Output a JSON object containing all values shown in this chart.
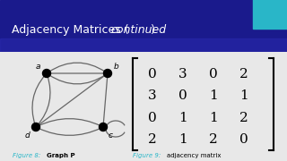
{
  "title_normal": "Adjacency Matrices (",
  "title_italic": "continued",
  "title_close": ")",
  "bg_color": "#e8e8e8",
  "header_bg_dark": "#1a1a8c",
  "header_bg_light": "#2a2ab0",
  "header_text_color": "#ffffff",
  "header_fontsize": 9,
  "matrix": [
    [
      0,
      3,
      0,
      2
    ],
    [
      3,
      0,
      1,
      1
    ],
    [
      0,
      1,
      1,
      2
    ],
    [
      2,
      1,
      2,
      0
    ]
  ],
  "fig8_label": "Figure 8:",
  "fig8_bold": "Graph P",
  "fig9_label": "Figure 9:",
  "fig9_rest": "adjacency matrix",
  "caption_color": "#29b6c8",
  "accent_color": "#29b6c8",
  "node_color": "#000000"
}
